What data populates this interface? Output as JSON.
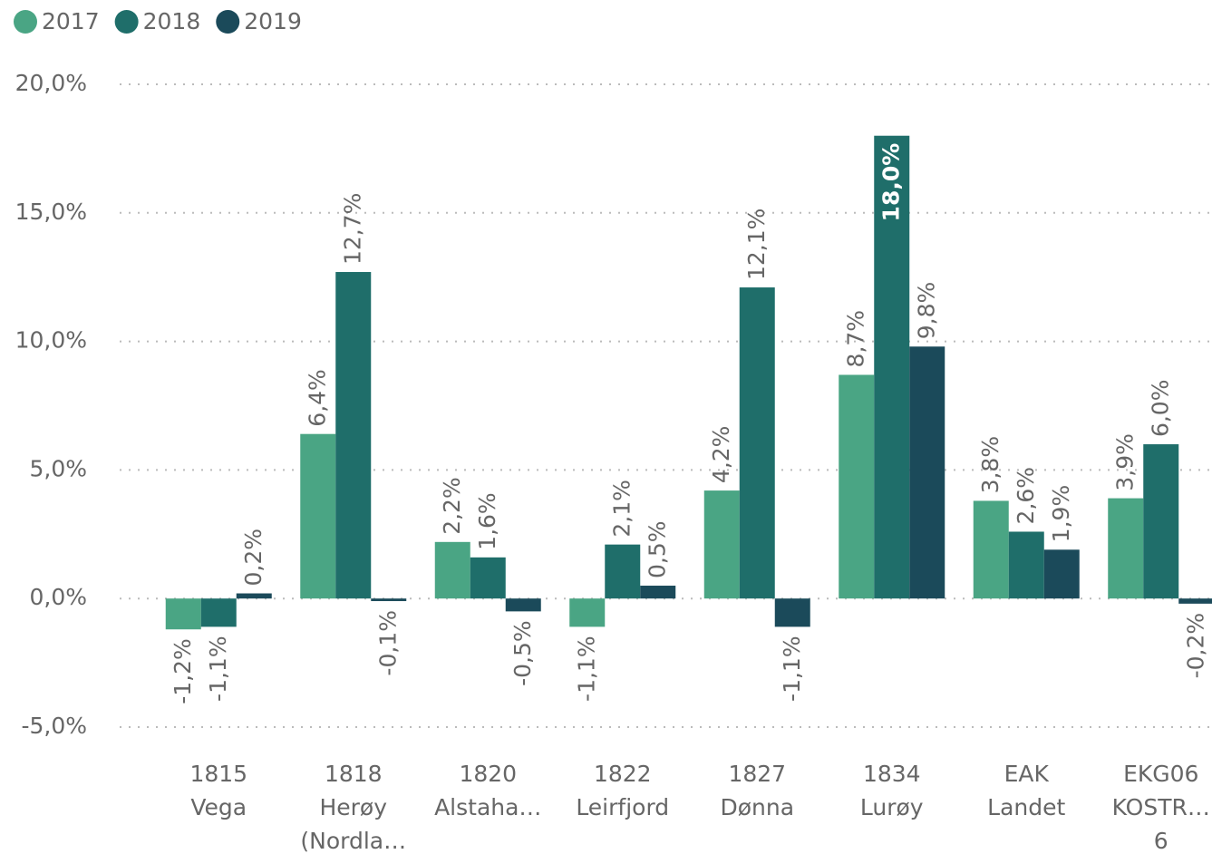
{
  "chart_data": {
    "type": "bar",
    "categories": [
      [
        "1815",
        "Vega"
      ],
      [
        "1818",
        "Herøy",
        "(Nordla…"
      ],
      [
        "1820",
        "Alstaha…"
      ],
      [
        "1822",
        "Leirfjord"
      ],
      [
        "1827",
        "Dønna"
      ],
      [
        "1834",
        "Lurøy"
      ],
      [
        "EAK",
        "Landet"
      ],
      [
        "EKG06",
        "KOSTR…",
        "6"
      ]
    ],
    "series": [
      {
        "name": "2017",
        "color": "#4aa584",
        "values": [
          -1.2,
          6.4,
          2.2,
          -1.1,
          4.2,
          8.7,
          3.8,
          3.9
        ],
        "value_labels": [
          "-1,2%",
          "6,4%",
          "2,2%",
          "-1,1%",
          "4,2%",
          "8,7%",
          "3,8%",
          "3,9%"
        ]
      },
      {
        "name": "2018",
        "color": "#1f6e6a",
        "values": [
          -1.1,
          12.7,
          1.6,
          2.1,
          12.1,
          18.0,
          2.6,
          6.0
        ],
        "value_labels": [
          "-1,1%",
          "12,7%",
          "1,6%",
          "2,1%",
          "12,1%",
          "18,0%",
          "2,6%",
          "6,0%"
        ]
      },
      {
        "name": "2019",
        "color": "#1b4a5a",
        "values": [
          0.2,
          -0.1,
          -0.5,
          0.5,
          -1.1,
          9.8,
          1.9,
          -0.2
        ],
        "value_labels": [
          "0,2%",
          "-0,1%",
          "-0,5%",
          "0,5%",
          "-1,1%",
          "9,8%",
          "1,9%",
          "-0,2%"
        ]
      }
    ],
    "ylim": [
      -5,
      20
    ],
    "yticks": [
      {
        "value": -5,
        "label": "-5,0%"
      },
      {
        "value": 0,
        "label": "0,0%"
      },
      {
        "value": 5,
        "label": "5,0%"
      },
      {
        "value": 10,
        "label": "10,0%"
      },
      {
        "value": 15,
        "label": "15,0%"
      },
      {
        "value": 20,
        "label": "20,0%"
      }
    ],
    "grid": true
  }
}
